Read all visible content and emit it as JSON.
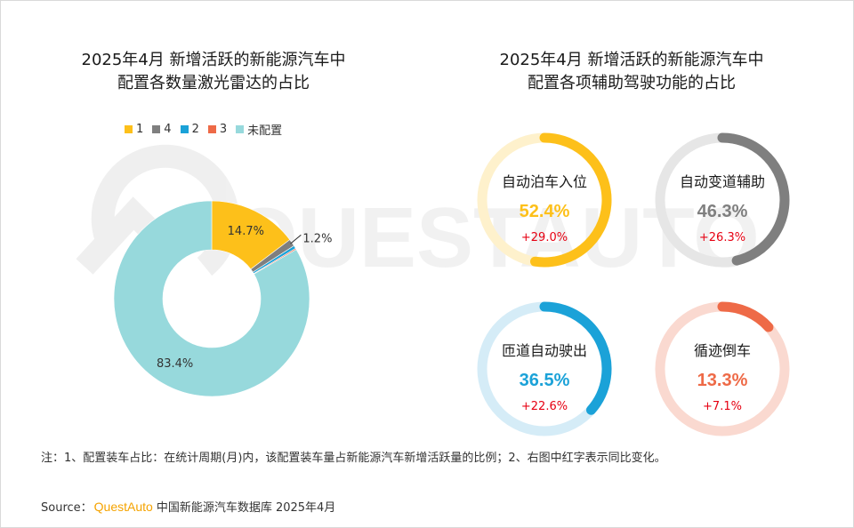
{
  "colors": {
    "yellow": "#FDC01A",
    "gray": "#7F7F7F",
    "blue": "#1BA2D8",
    "orange": "#EE6A47",
    "teal": "#97D9DC",
    "red": "#E60012"
  },
  "chart_data": [
    {
      "type": "pie",
      "title": [
        "2025年4月 新增活跃的新能源汽车中",
        "配置各数量激光雷达的占比"
      ],
      "legend": {
        "position": "top",
        "items": [
          {
            "label": "1",
            "color": "#FDC01A"
          },
          {
            "label": "4",
            "color": "#7F7F7F"
          },
          {
            "label": "2",
            "color": "#1BA2D8"
          },
          {
            "label": "3",
            "color": "#EE6A47"
          },
          {
            "label": "未配置",
            "color": "#97D9DC"
          }
        ]
      },
      "slices": [
        {
          "name": "1",
          "value": 14.7,
          "label": "14.7%",
          "color": "#FDC01A"
        },
        {
          "name": "4",
          "value": 1.2,
          "label": "1.2%",
          "color": "#7F7F7F"
        },
        {
          "name": "2",
          "value": 0.5,
          "label": "",
          "color": "#1BA2D8"
        },
        {
          "name": "3",
          "value": 0.2,
          "label": "",
          "color": "#EE6A47"
        },
        {
          "name": "未配置",
          "value": 83.4,
          "label": "83.4%",
          "color": "#97D9DC"
        }
      ]
    },
    {
      "type": "pie",
      "title": [
        "2025年4月 新增活跃的新能源汽车中",
        "配置各项辅助驾驶功能的占比"
      ],
      "gauges": [
        {
          "name": "自动泊车入位",
          "value": 52.4,
          "label": "52.4%",
          "change": "+29.0%",
          "color": "#FDC01A",
          "track": "#FEF1CC"
        },
        {
          "name": "自动变道辅助",
          "value": 46.3,
          "label": "46.3%",
          "change": "+26.3%",
          "color": "#7F7F7F",
          "track": "#E6E6E6"
        },
        {
          "name": "匝道自动驶出",
          "value": 36.5,
          "label": "36.5%",
          "change": "+22.6%",
          "color": "#1BA2D8",
          "track": "#D5ECF7"
        },
        {
          "name": "循迹倒车",
          "value": 13.3,
          "label": "13.3%",
          "change": "+7.1%",
          "color": "#EE6A47",
          "track": "#FAD9D0"
        }
      ]
    }
  ],
  "note": "注：1、配置装车占比：在统计周期(月)内，该配置装车量占新能源汽车新增活跃量的比例；2、右图中红字表示同比变化。",
  "source": {
    "prefix": "Source：",
    "brand": "QuestAuto",
    "suffix": "中国新能源汽车数据库 2025年4月"
  },
  "watermark": "QUESTAUTO"
}
